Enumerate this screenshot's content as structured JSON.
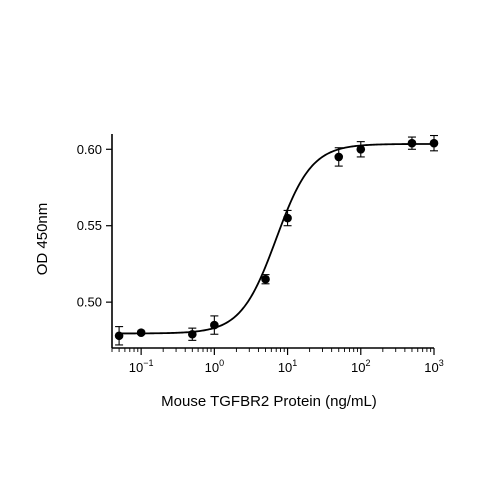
{
  "chart_data": {
    "type": "scatter",
    "title": "",
    "xlabel": "Mouse TGFBR2 Protein (ng/mL)",
    "ylabel": "OD 450nm",
    "xscale": "log",
    "xlim": [
      0.04,
      1000
    ],
    "ylim": [
      0.47,
      0.61
    ],
    "grid": false,
    "legend": "none",
    "x_ticks": [
      {
        "value": 0.1,
        "base": "10",
        "exp": "−1"
      },
      {
        "value": 1,
        "base": "10",
        "exp": "0"
      },
      {
        "value": 10,
        "base": "10",
        "exp": "1"
      },
      {
        "value": 100,
        "base": "10",
        "exp": "2"
      },
      {
        "value": 1000,
        "base": "10",
        "exp": "3"
      }
    ],
    "y_ticks": [
      {
        "value": 0.5,
        "label": "0.50"
      },
      {
        "value": 0.55,
        "label": "0.55"
      },
      {
        "value": 0.6,
        "label": "0.60"
      }
    ],
    "series": [
      {
        "points": [
          {
            "x": 0.05,
            "y": 0.478,
            "err": 0.006
          },
          {
            "x": 0.1,
            "y": 0.48,
            "err": 0.001
          },
          {
            "x": 0.5,
            "y": 0.479,
            "err": 0.004
          },
          {
            "x": 1,
            "y": 0.485,
            "err": 0.006
          },
          {
            "x": 5,
            "y": 0.515,
            "err": 0.003
          },
          {
            "x": 10,
            "y": 0.555,
            "err": 0.005
          },
          {
            "x": 50,
            "y": 0.595,
            "err": 0.006
          },
          {
            "x": 100,
            "y": 0.6,
            "err": 0.005
          },
          {
            "x": 500,
            "y": 0.604,
            "err": 0.004
          },
          {
            "x": 1000,
            "y": 0.604,
            "err": 0.005
          }
        ],
        "fit": {
          "model": "4PL",
          "bottom": 0.4795,
          "top": 0.6035,
          "ec50": 7.0,
          "hill": 1.8
        }
      }
    ],
    "colors": {
      "axis": "#000000",
      "marker": "#000000",
      "curve": "#000000"
    }
  }
}
